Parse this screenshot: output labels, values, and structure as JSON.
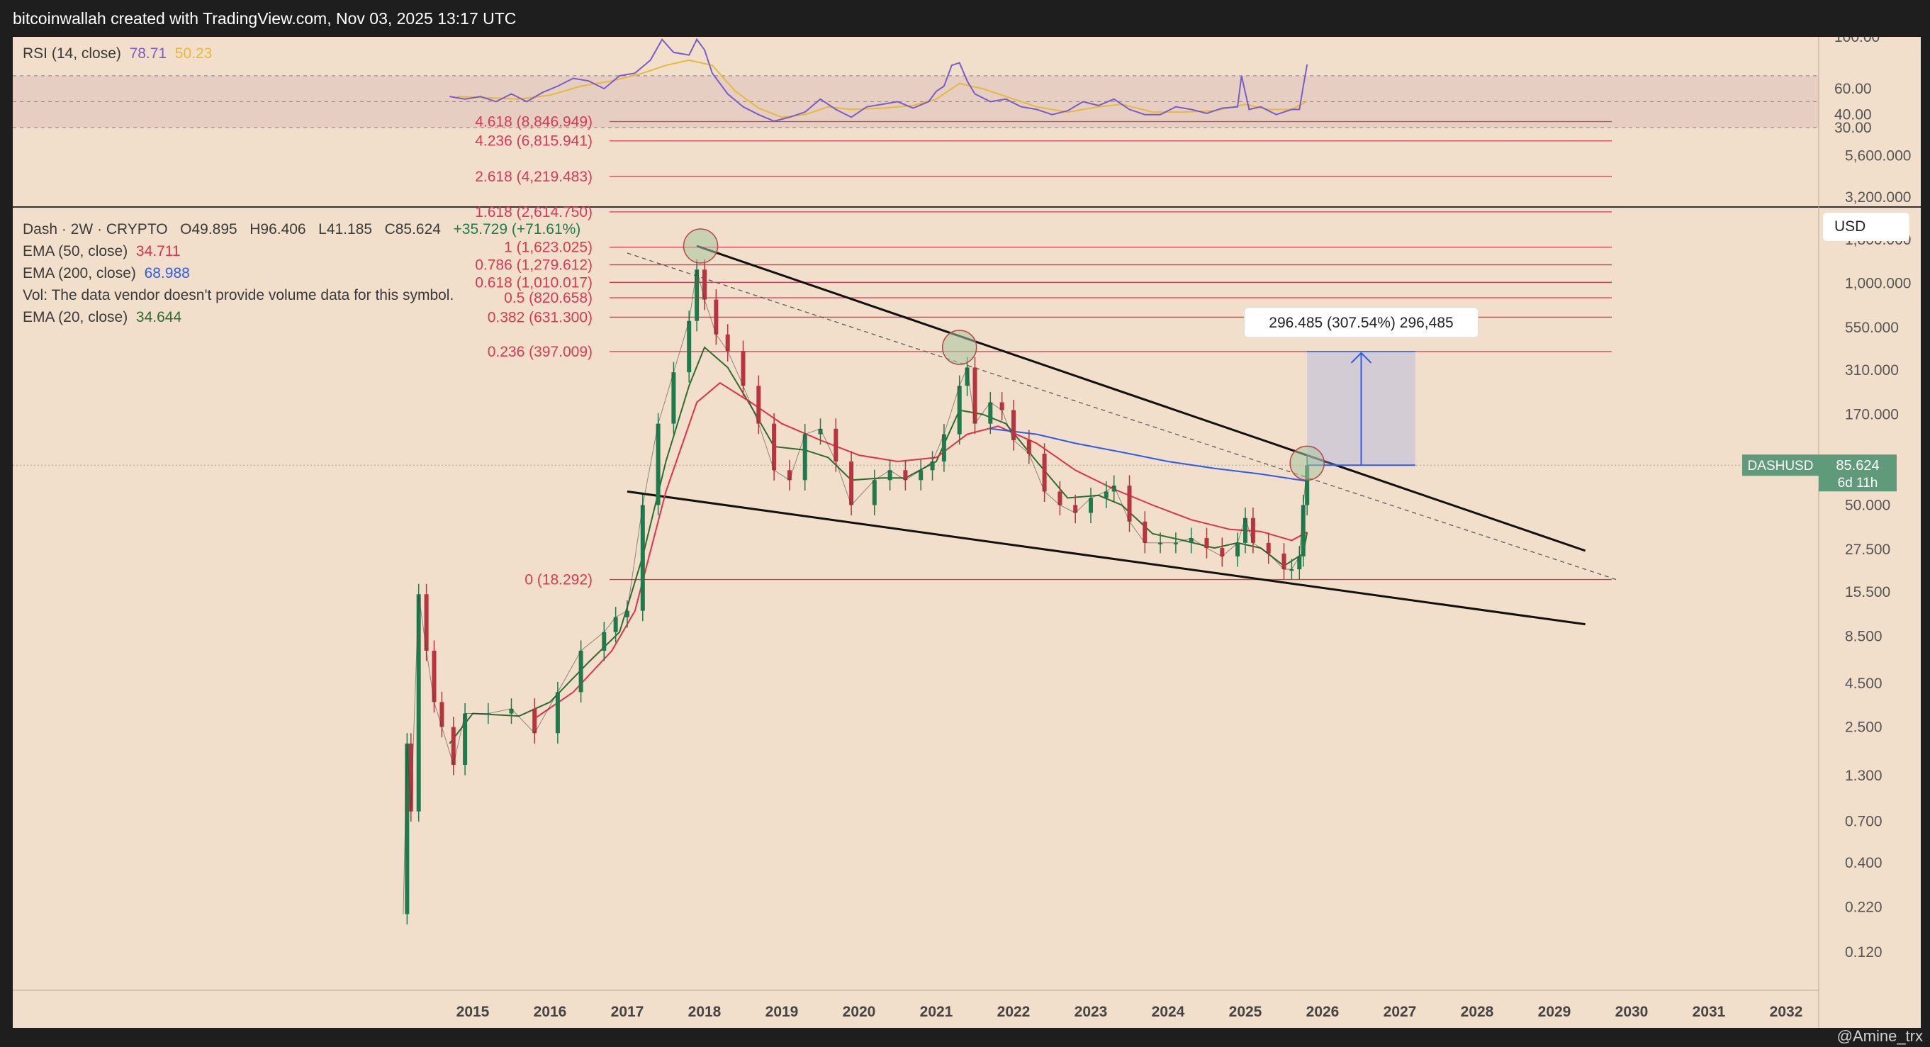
{
  "header": {
    "title": "bitcoinwallah created with TradingView.com, Nov 03, 2025 13:17 UTC"
  },
  "footer": {
    "watermark": "@Amine_trx"
  },
  "rsi_panel": {
    "label": "RSI (14, close)",
    "rsi_value": "78.71",
    "ma_value": "50.23",
    "ticks": [
      "100.00",
      "60.00",
      "40.00",
      "30.00"
    ]
  },
  "legend": {
    "symbol_line": "Dash · 2W · CRYPTO",
    "o": "O49.895",
    "h": "H96.406",
    "l": "L41.185",
    "c": "C85.624",
    "change": "+35.729 (+71.61%)",
    "ema50_label": "EMA (50, close)",
    "ema50_value": "34.711",
    "ema200_label": "EMA (200, close)",
    "ema200_value": "68.988",
    "vol_note": "Vol: The data vendor doesn't provide volume data for this symbol.",
    "ema20_label": "EMA (20, close)",
    "ema20_value": "34.644"
  },
  "currency": "USD",
  "price_axis": {
    "labels": [
      "5,600.000",
      "3,200.000",
      "1,800.000",
      "1,000.000",
      "550.000",
      "310.000",
      "170.000",
      "85.624",
      "50.000",
      "27.500",
      "15.500",
      "8.500",
      "4.500",
      "2.500",
      "1.300",
      "0.700",
      "0.400",
      "0.220",
      "0.120"
    ]
  },
  "symbol_tag": {
    "name": "DASHUSD",
    "price": "85.624",
    "countdown": "6d 11h"
  },
  "measure": {
    "label": "296.485 (307.54%) 296,485"
  },
  "colors": {
    "background": "#f2dfcb",
    "fib": "#d8385a",
    "ema20": "#2e6b2e",
    "ema50": "#e0304a",
    "ema200": "#2f5bea",
    "rsi": "#7a5cc8",
    "rsi_ma": "#e6b93c",
    "bull": "#1f7a4c",
    "bear": "#b8343f",
    "measure": "#2f5bea"
  },
  "chart_data": [
    {
      "type": "candlestick",
      "title": "Dash · 2W · CRYPTO",
      "scale": "log",
      "x": [
        "2015",
        "2016",
        "2017",
        "2018",
        "2019",
        "2020",
        "2021",
        "2022",
        "2023",
        "2024",
        "2025",
        "2026",
        "2027",
        "2028",
        "2029",
        "2030",
        "2031",
        "2032"
      ],
      "ylim": [
        0.1,
        8000
      ],
      "fib_levels": [
        {
          "label": "4.618 (8,846.949)",
          "value": 8846.949
        },
        {
          "label": "4.236 (6,815.941)",
          "value": 6815.941
        },
        {
          "label": "2.618 (4,219.483)",
          "value": 4219.483
        },
        {
          "label": "1.618 (2,614.750)",
          "value": 2614.75
        },
        {
          "label": "1 (1,623.025)",
          "value": 1623.025
        },
        {
          "label": "0.786 (1,279.612)",
          "value": 1279.612
        },
        {
          "label": "0.618 (1,010.017)",
          "value": 1010.017
        },
        {
          "label": "0.5 (820.658)",
          "value": 820.658
        },
        {
          "label": "0.382 (631.300)",
          "value": 631.3
        },
        {
          "label": "0.236 (397.009)",
          "value": 397.009
        },
        {
          "label": "0 (18.292)",
          "value": 18.292
        }
      ],
      "price_series": {
        "name": "DASHUSD",
        "points": [
          [
            2014.1,
            0.2
          ],
          [
            2014.15,
            2
          ],
          [
            2014.2,
            0.8
          ],
          [
            2014.3,
            15
          ],
          [
            2014.4,
            7
          ],
          [
            2014.5,
            3.5
          ],
          [
            2014.6,
            2.5
          ],
          [
            2014.75,
            1.5
          ],
          [
            2014.9,
            3
          ],
          [
            2015.2,
            3
          ],
          [
            2015.5,
            3.2
          ],
          [
            2015.8,
            2.3
          ],
          [
            2016.1,
            4
          ],
          [
            2016.4,
            7
          ],
          [
            2016.7,
            9
          ],
          [
            2016.85,
            11
          ],
          [
            2017.0,
            12
          ],
          [
            2017.2,
            50
          ],
          [
            2017.4,
            150
          ],
          [
            2017.6,
            300
          ],
          [
            2017.8,
            600
          ],
          [
            2017.9,
            1200
          ],
          [
            2018.0,
            800
          ],
          [
            2018.15,
            500
          ],
          [
            2018.3,
            400
          ],
          [
            2018.5,
            250
          ],
          [
            2018.7,
            150
          ],
          [
            2018.9,
            80
          ],
          [
            2019.1,
            70
          ],
          [
            2019.3,
            130
          ],
          [
            2019.5,
            140
          ],
          [
            2019.7,
            90
          ],
          [
            2019.9,
            50
          ],
          [
            2020.2,
            70
          ],
          [
            2020.4,
            80
          ],
          [
            2020.6,
            70
          ],
          [
            2020.8,
            80
          ],
          [
            2020.95,
            90
          ],
          [
            2021.1,
            130
          ],
          [
            2021.3,
            250
          ],
          [
            2021.4,
            320
          ],
          [
            2021.5,
            150
          ],
          [
            2021.7,
            200
          ],
          [
            2021.85,
            180
          ],
          [
            2022.0,
            120
          ],
          [
            2022.2,
            100
          ],
          [
            2022.4,
            60
          ],
          [
            2022.6,
            50
          ],
          [
            2022.8,
            45
          ],
          [
            2023.0,
            55
          ],
          [
            2023.2,
            60
          ],
          [
            2023.3,
            65
          ],
          [
            2023.5,
            40
          ],
          [
            2023.7,
            30
          ],
          [
            2023.9,
            30
          ],
          [
            2024.1,
            30
          ],
          [
            2024.3,
            32
          ],
          [
            2024.5,
            28
          ],
          [
            2024.7,
            25
          ],
          [
            2024.9,
            30
          ],
          [
            2025.0,
            42
          ],
          [
            2025.1,
            30
          ],
          [
            2025.3,
            26
          ],
          [
            2025.5,
            21
          ],
          [
            2025.6,
            21
          ],
          [
            2025.7,
            25
          ],
          [
            2025.75,
            50
          ],
          [
            2025.8,
            85.624
          ]
        ]
      },
      "ema_series": [
        {
          "name": "EMA (20, close)",
          "points": [
            [
              2014.7,
              2
            ],
            [
              2015.0,
              3
            ],
            [
              2015.6,
              2.9
            ],
            [
              2016.0,
              3.5
            ],
            [
              2016.5,
              6
            ],
            [
              2016.9,
              9
            ],
            [
              2017.2,
              25
            ],
            [
              2017.5,
              90
            ],
            [
              2017.8,
              250
            ],
            [
              2018.0,
              420
            ],
            [
              2018.3,
              320
            ],
            [
              2018.6,
              190
            ],
            [
              2018.9,
              110
            ],
            [
              2019.3,
              105
            ],
            [
              2019.6,
              95
            ],
            [
              2019.9,
              70
            ],
            [
              2020.3,
              72
            ],
            [
              2020.6,
              72
            ],
            [
              2021.0,
              90
            ],
            [
              2021.3,
              180
            ],
            [
              2021.6,
              170
            ],
            [
              2021.9,
              150
            ],
            [
              2022.3,
              90
            ],
            [
              2022.7,
              55
            ],
            [
              2023.1,
              57
            ],
            [
              2023.4,
              50
            ],
            [
              2023.8,
              34
            ],
            [
              2024.2,
              31
            ],
            [
              2024.6,
              28
            ],
            [
              2024.9,
              30
            ],
            [
              2025.2,
              28
            ],
            [
              2025.5,
              22
            ],
            [
              2025.75,
              26
            ],
            [
              2025.8,
              34.644
            ]
          ]
        },
        {
          "name": "EMA (50, close)",
          "points": [
            [
              2015.8,
              2.8
            ],
            [
              2016.3,
              4
            ],
            [
              2016.8,
              7
            ],
            [
              2017.1,
              12
            ],
            [
              2017.5,
              60
            ],
            [
              2017.9,
              200
            ],
            [
              2018.2,
              260
            ],
            [
              2018.6,
              200
            ],
            [
              2019.0,
              150
            ],
            [
              2019.5,
              120
            ],
            [
              2020.0,
              98
            ],
            [
              2020.5,
              90
            ],
            [
              2021.0,
              95
            ],
            [
              2021.4,
              130
            ],
            [
              2021.8,
              145
            ],
            [
              2022.3,
              115
            ],
            [
              2022.8,
              80
            ],
            [
              2023.3,
              62
            ],
            [
              2023.8,
              50
            ],
            [
              2024.3,
              41
            ],
            [
              2024.8,
              36
            ],
            [
              2025.2,
              35
            ],
            [
              2025.6,
              31
            ],
            [
              2025.8,
              34.711
            ]
          ]
        },
        {
          "name": "EMA (200, close)",
          "points": [
            [
              2021.7,
              140
            ],
            [
              2022.3,
              130
            ],
            [
              2022.8,
              115
            ],
            [
              2023.4,
              102
            ],
            [
              2024.0,
              90
            ],
            [
              2024.6,
              82
            ],
            [
              2025.2,
              76
            ],
            [
              2025.8,
              68.988
            ]
          ]
        }
      ],
      "trendlines": [
        {
          "from": [
            2017.9,
            1650
          ],
          "to": [
            2029.4,
            27
          ]
        },
        {
          "from": [
            2017.0,
            60
          ],
          "to": [
            2029.4,
            10
          ]
        },
        {
          "from": [
            2017.0,
            1500
          ],
          "to": [
            2029.8,
            18.292
          ]
        }
      ],
      "pivot_markers": [
        [
          2017.95,
          1650
        ],
        [
          2021.3,
          420
        ],
        [
          2025.8,
          88
        ]
      ],
      "measure_box": {
        "from": 85.624,
        "to": 397.009,
        "change": 296.485,
        "percent": 307.54
      }
    },
    {
      "type": "line",
      "title": "RSI (14, close)",
      "ylim": [
        30,
        100
      ],
      "levels": [
        70,
        50,
        30
      ],
      "series": [
        {
          "name": "RSI (14, close)",
          "points": [
            [
              2014.7,
              54
            ],
            [
              2014.9,
              52
            ],
            [
              2015.1,
              54
            ],
            [
              2015.3,
              50
            ],
            [
              2015.5,
              56
            ],
            [
              2015.7,
              50
            ],
            [
              2015.9,
              57
            ],
            [
              2016.1,
              62
            ],
            [
              2016.3,
              68
            ],
            [
              2016.5,
              66
            ],
            [
              2016.7,
              60
            ],
            [
              2016.9,
              70
            ],
            [
              2017.1,
              72
            ],
            [
              2017.3,
              82
            ],
            [
              2017.45,
              98
            ],
            [
              2017.6,
              88
            ],
            [
              2017.8,
              86
            ],
            [
              2017.9,
              98
            ],
            [
              2018.0,
              90
            ],
            [
              2018.1,
              72
            ],
            [
              2018.3,
              56
            ],
            [
              2018.5,
              46
            ],
            [
              2018.7,
              40
            ],
            [
              2018.9,
              35
            ],
            [
              2019.1,
              38
            ],
            [
              2019.3,
              42
            ],
            [
              2019.5,
              52
            ],
            [
              2019.7,
              44
            ],
            [
              2019.9,
              38
            ],
            [
              2020.1,
              46
            ],
            [
              2020.3,
              48
            ],
            [
              2020.5,
              50
            ],
            [
              2020.7,
              45
            ],
            [
              2020.9,
              50
            ],
            [
              2021.0,
              58
            ],
            [
              2021.1,
              62
            ],
            [
              2021.2,
              78
            ],
            [
              2021.3,
              80
            ],
            [
              2021.4,
              66
            ],
            [
              2021.5,
              56
            ],
            [
              2021.7,
              50
            ],
            [
              2021.9,
              52
            ],
            [
              2022.1,
              46
            ],
            [
              2022.3,
              44
            ],
            [
              2022.5,
              40
            ],
            [
              2022.7,
              43
            ],
            [
              2022.9,
              50
            ],
            [
              2023.1,
              47
            ],
            [
              2023.3,
              52
            ],
            [
              2023.5,
              44
            ],
            [
              2023.7,
              40
            ],
            [
              2023.9,
              40
            ],
            [
              2024.1,
              46
            ],
            [
              2024.3,
              44
            ],
            [
              2024.5,
              41
            ],
            [
              2024.7,
              45
            ],
            [
              2024.9,
              46
            ],
            [
              2024.95,
              70
            ],
            [
              2025.05,
              44
            ],
            [
              2025.2,
              46
            ],
            [
              2025.4,
              40
            ],
            [
              2025.6,
              44
            ],
            [
              2025.7,
              44
            ],
            [
              2025.75,
              62
            ],
            [
              2025.8,
              78.71
            ]
          ]
        },
        {
          "name": "MA",
          "points": [
            [
              2014.8,
              54
            ],
            [
              2015.2,
              53
            ],
            [
              2015.6,
              52
            ],
            [
              2016.0,
              55
            ],
            [
              2016.4,
              62
            ],
            [
              2016.8,
              66
            ],
            [
              2017.2,
              72
            ],
            [
              2017.5,
              78
            ],
            [
              2017.8,
              82
            ],
            [
              2018.1,
              78
            ],
            [
              2018.4,
              58
            ],
            [
              2018.7,
              45
            ],
            [
              2019.0,
              38
            ],
            [
              2019.3,
              40
            ],
            [
              2019.6,
              46
            ],
            [
              2019.9,
              44
            ],
            [
              2020.3,
              45
            ],
            [
              2020.7,
              47
            ],
            [
              2021.0,
              52
            ],
            [
              2021.3,
              64
            ],
            [
              2021.6,
              60
            ],
            [
              2021.9,
              54
            ],
            [
              2022.3,
              46
            ],
            [
              2022.7,
              42
            ],
            [
              2023.1,
              46
            ],
            [
              2023.4,
              48
            ],
            [
              2023.8,
              42
            ],
            [
              2024.2,
              42
            ],
            [
              2024.6,
              43
            ],
            [
              2025.0,
              48
            ],
            [
              2025.3,
              44
            ],
            [
              2025.6,
              44
            ],
            [
              2025.8,
              50.23
            ]
          ]
        }
      ]
    }
  ]
}
